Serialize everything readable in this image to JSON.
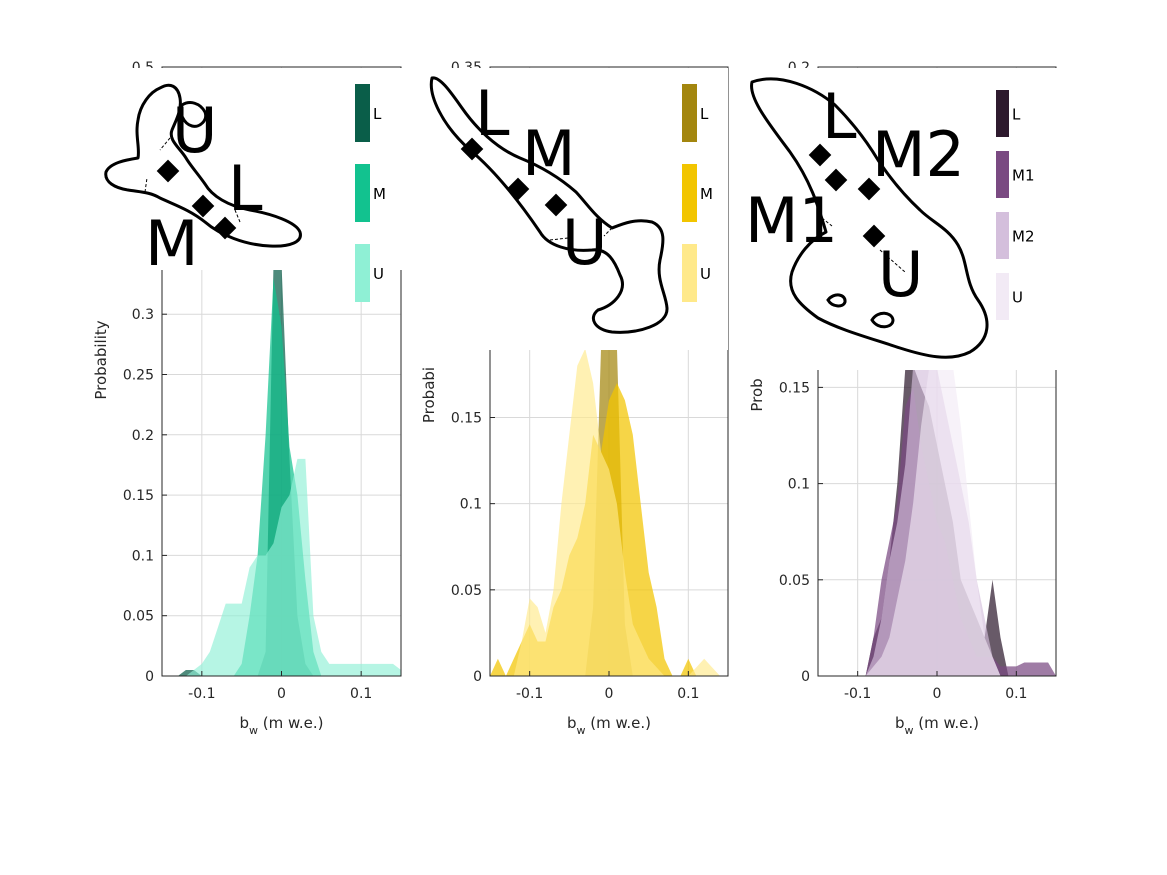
{
  "chart_data": [
    {
      "type": "area",
      "xlabel_main": "b",
      "xlabel_sub": "w",
      "xlabel_rest": " (m w.e.)",
      "ylabel": "Probability",
      "xlim": [
        -0.15,
        0.15
      ],
      "ylim": [
        0,
        0.5
      ],
      "xticks": [
        -0.1,
        0,
        0.1
      ],
      "xtick_labels": [
        "-0.1",
        "0",
        "0.1"
      ],
      "yticks": [
        0,
        0.05,
        0.1,
        0.15,
        0.2,
        0.25,
        0.3,
        0.5
      ],
      "ytick_labels": [
        "0",
        "0.05",
        "0.1",
        "0.15",
        "0.2",
        "0.25",
        "0.3",
        "0.5"
      ],
      "legend": [
        "L",
        "M",
        "U"
      ],
      "map_labels": [
        "U",
        "L",
        "M"
      ],
      "colors": [
        "#0a5e49",
        "#12c28f",
        "#8ff0d5"
      ],
      "series": [
        {
          "name": "L",
          "x": [
            -0.13,
            -0.12,
            -0.11,
            -0.1,
            -0.09,
            -0.08,
            -0.07,
            -0.06,
            -0.05,
            -0.04,
            -0.03,
            -0.02,
            -0.01,
            0.0,
            0.01,
            0.02,
            0.03,
            0.04,
            0.05,
            0.06,
            0.07
          ],
          "values": [
            0,
            0.005,
            0.005,
            0,
            0,
            0,
            0,
            0,
            0,
            0,
            0,
            0.02,
            0.35,
            0.43,
            0.18,
            0.05,
            0.01,
            0,
            0,
            0,
            0
          ]
        },
        {
          "name": "M",
          "x": [
            -0.06,
            -0.05,
            -0.04,
            -0.03,
            -0.02,
            -0.01,
            0.0,
            0.01,
            0.02,
            0.03,
            0.04,
            0.05
          ],
          "values": [
            0,
            0.01,
            0.05,
            0.1,
            0.2,
            0.33,
            0.29,
            0.19,
            0.15,
            0.08,
            0.02,
            0
          ]
        },
        {
          "name": "U",
          "x": [
            -0.12,
            -0.11,
            -0.1,
            -0.09,
            -0.08,
            -0.07,
            -0.06,
            -0.05,
            -0.04,
            -0.03,
            -0.02,
            -0.01,
            0.0,
            0.01,
            0.02,
            0.03,
            0.04,
            0.05,
            0.06,
            0.07,
            0.08,
            0.09,
            0.1,
            0.11,
            0.12,
            0.13,
            0.14,
            0.15
          ],
          "values": [
            0,
            0.005,
            0.01,
            0.02,
            0.04,
            0.06,
            0.06,
            0.06,
            0.09,
            0.1,
            0.1,
            0.11,
            0.14,
            0.15,
            0.18,
            0.18,
            0.05,
            0.02,
            0.01,
            0.01,
            0.01,
            0.01,
            0.01,
            0.01,
            0.01,
            0.01,
            0.01,
            0.005
          ]
        }
      ]
    },
    {
      "type": "area",
      "xlabel_main": "b",
      "xlabel_sub": "w",
      "xlabel_rest": " (m w.e.)",
      "ylabel": "Probabi",
      "xlim": [
        -0.15,
        0.15
      ],
      "ylim": [
        0,
        0.35
      ],
      "xticks": [
        -0.1,
        0,
        0.1
      ],
      "xtick_labels": [
        "-0.1",
        "0",
        "0.1"
      ],
      "yticks": [
        0,
        0.05,
        0.1,
        0.15,
        0.35
      ],
      "ytick_labels": [
        "0",
        "0.05",
        "0.1",
        "0.15",
        "0.35"
      ],
      "legend": [
        "L",
        "M",
        "U"
      ],
      "map_labels": [
        "L",
        "M",
        "U"
      ],
      "colors": [
        "#a3860e",
        "#f2c500",
        "#ffe98a"
      ],
      "series": [
        {
          "name": "L",
          "x": [
            -0.03,
            -0.02,
            -0.01,
            0.0,
            0.01,
            0.02,
            0.03,
            0.04
          ],
          "values": [
            0,
            0.04,
            0.2,
            0.21,
            0.2,
            0.03,
            0,
            0
          ]
        },
        {
          "name": "M",
          "x": [
            -0.15,
            -0.14,
            -0.13,
            -0.12,
            -0.11,
            -0.1,
            -0.09,
            -0.08,
            -0.07,
            -0.06,
            -0.05,
            -0.04,
            -0.03,
            -0.02,
            -0.01,
            0.0,
            0.01,
            0.02,
            0.03,
            0.04,
            0.05,
            0.06,
            0.07,
            0.08,
            0.09,
            0.1,
            0.11
          ],
          "values": [
            0,
            0.01,
            0,
            0.01,
            0.02,
            0.03,
            0.02,
            0.02,
            0.04,
            0.05,
            0.07,
            0.08,
            0.1,
            0.14,
            0.13,
            0.16,
            0.17,
            0.16,
            0.14,
            0.1,
            0.06,
            0.04,
            0.01,
            0,
            0,
            0.01,
            0
          ]
        },
        {
          "name": "U",
          "x": [
            -0.12,
            -0.11,
            -0.1,
            -0.09,
            -0.08,
            -0.07,
            -0.06,
            -0.05,
            -0.04,
            -0.03,
            -0.02,
            -0.01,
            0.0,
            0.01,
            0.02,
            0.03,
            0.04,
            0.05,
            0.06,
            0.07,
            0.08,
            0.09,
            0.1,
            0.11,
            0.12,
            0.13,
            0.14
          ],
          "values": [
            0,
            0.02,
            0.045,
            0.04,
            0.025,
            0.05,
            0.1,
            0.14,
            0.18,
            0.19,
            0.17,
            0.13,
            0.12,
            0.1,
            0.06,
            0.03,
            0.02,
            0.01,
            0.005,
            0,
            0,
            0,
            0,
            0.005,
            0.01,
            0.005,
            0
          ]
        }
      ]
    },
    {
      "type": "area",
      "xlabel_main": "b",
      "xlabel_sub": "w",
      "xlabel_rest": " (m w.e.)",
      "ylabel": "Prob",
      "xlim": [
        -0.15,
        0.15
      ],
      "ylim": [
        0,
        0.2
      ],
      "xticks": [
        -0.1,
        0,
        0.1
      ],
      "xtick_labels": [
        "-0.1",
        "0",
        "0.1"
      ],
      "yticks": [
        0,
        0.05,
        0.1,
        0.15,
        0.2
      ],
      "ytick_labels": [
        "0",
        "0.05",
        "0.1",
        "0.15",
        "0.2"
      ],
      "legend": [
        "L",
        "M1",
        "M2",
        "U"
      ],
      "map_labels": [
        "L",
        "M2",
        "M1",
        "U"
      ],
      "colors": [
        "#2e1a2e",
        "#7a4a82",
        "#d4bfdc",
        "#f2eaf5"
      ],
      "series": [
        {
          "name": "L",
          "x": [
            -0.1,
            -0.09,
            -0.08,
            -0.07,
            -0.06,
            -0.05,
            -0.04,
            -0.03,
            -0.02,
            -0.01,
            0.0,
            0.01,
            0.02,
            0.03,
            0.04,
            0.05,
            0.06,
            0.07,
            0.08,
            0.09,
            0.1
          ],
          "values": [
            0,
            0,
            0.02,
            0.03,
            0.06,
            0.1,
            0.16,
            0.17,
            0.15,
            0.14,
            0.12,
            0.1,
            0.08,
            0.05,
            0.04,
            0.03,
            0.02,
            0.05,
            0.02,
            0,
            0
          ]
        },
        {
          "name": "M1",
          "x": [
            -0.09,
            -0.08,
            -0.07,
            -0.06,
            -0.05,
            -0.04,
            -0.03,
            -0.02,
            -0.01,
            0.0,
            0.01,
            0.02,
            0.03,
            0.04,
            0.05,
            0.06,
            0.07,
            0.08,
            0.09,
            0.1,
            0.11,
            0.12,
            0.13,
            0.14,
            0.15
          ],
          "values": [
            0,
            0.02,
            0.05,
            0.07,
            0.09,
            0.14,
            0.15,
            0.12,
            0.1,
            0.08,
            0.07,
            0.05,
            0.03,
            0.02,
            0.01,
            0.01,
            0.01,
            0.005,
            0.005,
            0.005,
            0.007,
            0.007,
            0.007,
            0.007,
            0
          ]
        },
        {
          "name": "M2",
          "x": [
            -0.09,
            -0.08,
            -0.07,
            -0.06,
            -0.05,
            -0.04,
            -0.03,
            -0.02,
            -0.01,
            0.0,
            0.01,
            0.02,
            0.03,
            0.04,
            0.05,
            0.06,
            0.07,
            0.08
          ],
          "values": [
            0,
            0.01,
            0.03,
            0.06,
            0.08,
            0.11,
            0.17,
            0.17,
            0.17,
            0.16,
            0.14,
            0.12,
            0.1,
            0.08,
            0.05,
            0.03,
            0.01,
            0
          ]
        },
        {
          "name": "U",
          "x": [
            -0.09,
            -0.08,
            -0.07,
            -0.06,
            -0.05,
            -0.04,
            -0.03,
            -0.02,
            -0.01,
            0.0,
            0.01,
            0.02,
            0.03,
            0.04,
            0.05,
            0.06,
            0.07,
            0.08
          ],
          "values": [
            0,
            0.005,
            0.01,
            0.02,
            0.04,
            0.06,
            0.09,
            0.13,
            0.16,
            0.17,
            0.19,
            0.17,
            0.13,
            0.09,
            0.05,
            0.02,
            0.01,
            0
          ]
        }
      ]
    }
  ]
}
